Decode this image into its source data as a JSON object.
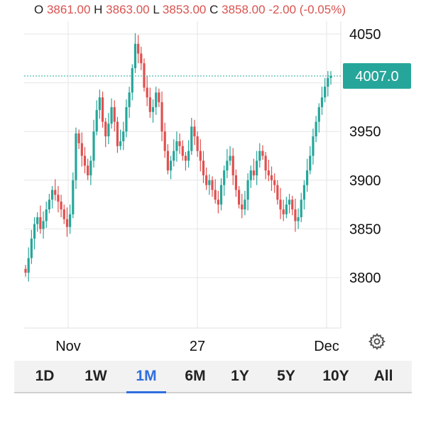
{
  "ohlc": {
    "o_label": "O",
    "o_value": "3861.00",
    "h_label": "H",
    "h_value": "3863.00",
    "l_label": "L",
    "l_value": "3853.00",
    "c_label": "C",
    "c_value": "3858.00",
    "change": "-2.00",
    "change_pct": "(-0.05%)"
  },
  "colors": {
    "up": "#26a69a",
    "down": "#e0504f",
    "accent": "#2f6fde",
    "grid": "#e6e6e6"
  },
  "chart_data": {
    "type": "candlestick",
    "y_ticks": [
      "4050",
      "4000",
      "3950",
      "3900",
      "3850",
      "3800"
    ],
    "y_tick_values": [
      4050,
      4000,
      3950,
      3900,
      3850,
      3800
    ],
    "ylim": [
      3750,
      4070
    ],
    "x_ticks": [
      "Nov",
      "27",
      "Dec"
    ],
    "last_price_label": "4007.0",
    "last_price": 4007,
    "close_series": [
      3805,
      3820,
      3840,
      3855,
      3862,
      3850,
      3858,
      3870,
      3880,
      3890,
      3885,
      3878,
      3870,
      3860,
      3852,
      3865,
      3900,
      3948,
      3938,
      3925,
      3915,
      3905,
      3920,
      3950,
      3972,
      3985,
      3960,
      3945,
      3958,
      3975,
      3960,
      3935,
      3940,
      3950,
      3975,
      3990,
      4015,
      4040,
      4030,
      4020,
      3995,
      3985,
      3970,
      3975,
      3990,
      3980,
      3950,
      3930,
      3910,
      3920,
      3930,
      3940,
      3935,
      3925,
      3920,
      3930,
      3955,
      3945,
      3930,
      3920,
      3905,
      3895,
      3900,
      3890,
      3880,
      3875,
      3895,
      3910,
      3920,
      3925,
      3905,
      3890,
      3875,
      3870,
      3880,
      3900,
      3910,
      3905,
      3920,
      3930,
      3925,
      3910,
      3905,
      3900,
      3895,
      3880,
      3870,
      3865,
      3875,
      3880,
      3870,
      3858,
      3862,
      3880,
      3895,
      3910,
      3925,
      3945,
      3960,
      3975,
      3985,
      3996,
      4005,
      4007
    ]
  },
  "tabs": [
    {
      "label": "1D"
    },
    {
      "label": "1W"
    },
    {
      "label": "1M"
    },
    {
      "label": "6M"
    },
    {
      "label": "1Y"
    },
    {
      "label": "5Y"
    },
    {
      "label": "10Y"
    },
    {
      "label": "All"
    }
  ],
  "active_tab": "1M",
  "icons": {
    "settings": "gear-icon"
  }
}
